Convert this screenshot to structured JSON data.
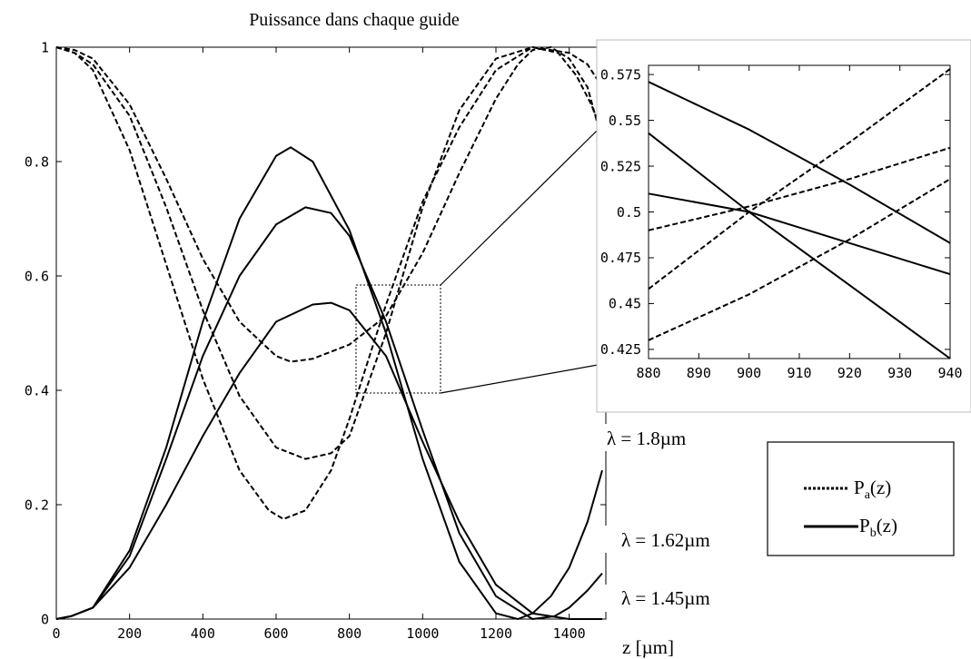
{
  "chart_data": [
    {
      "type": "line",
      "title": "Puissance dans chaque guide",
      "xlabel": "z [µm]",
      "ylabel": "",
      "xlim": [
        0,
        1500
      ],
      "ylim": [
        0,
        1
      ],
      "xticks": [
        "0",
        "200",
        "400",
        "600",
        "800",
        "1000",
        "1200",
        "1400"
      ],
      "yticks": [
        "0",
        "0.2",
        "0.4",
        "0.6",
        "0.8",
        "1"
      ],
      "grid": false,
      "series": [
        {
          "style": "dashed",
          "x": [
            0,
            50,
            100,
            200,
            300,
            400,
            500,
            600,
            640,
            700,
            800,
            900,
            1000,
            1100,
            1200,
            1260,
            1300,
            1350,
            1400,
            1450,
            1480
          ],
          "y": [
            1,
            0.995,
            0.98,
            0.9,
            0.77,
            0.63,
            0.52,
            0.46,
            0.45,
            0.455,
            0.48,
            0.53,
            0.64,
            0.78,
            0.91,
            0.97,
            0.995,
            1.0,
            0.98,
            0.93,
            0.86
          ]
        },
        {
          "style": "dashed",
          "x": [
            0,
            50,
            100,
            200,
            300,
            400,
            500,
            600,
            680,
            750,
            800,
            900,
            1000,
            1100,
            1200,
            1300,
            1370,
            1420,
            1460,
            1490
          ],
          "y": [
            1,
            0.99,
            0.97,
            0.88,
            0.72,
            0.54,
            0.39,
            0.3,
            0.28,
            0.29,
            0.32,
            0.5,
            0.72,
            0.89,
            0.98,
            1.0,
            0.99,
            0.95,
            0.9,
            0.85
          ]
        },
        {
          "style": "dashed",
          "x": [
            0,
            50,
            100,
            200,
            300,
            400,
            500,
            580,
            620,
            680,
            750,
            800,
            900,
            1000,
            1100,
            1200,
            1300,
            1400,
            1450,
            1490
          ],
          "y": [
            1,
            0.99,
            0.96,
            0.82,
            0.62,
            0.42,
            0.26,
            0.19,
            0.175,
            0.19,
            0.26,
            0.35,
            0.55,
            0.73,
            0.86,
            0.96,
            1.0,
            0.99,
            0.97,
            0.93
          ]
        },
        {
          "style": "solid",
          "x": [
            0,
            40,
            100,
            200,
            300,
            400,
            500,
            600,
            640,
            700,
            800,
            900,
            1000,
            1100,
            1200,
            1260,
            1300,
            1350,
            1400,
            1450,
            1490
          ],
          "y": [
            0,
            0.005,
            0.02,
            0.12,
            0.3,
            0.52,
            0.7,
            0.81,
            0.825,
            0.8,
            0.68,
            0.5,
            0.28,
            0.1,
            0.01,
            0,
            0.01,
            0.04,
            0.09,
            0.17,
            0.26
          ]
        },
        {
          "style": "solid",
          "x": [
            0,
            40,
            100,
            200,
            300,
            400,
            500,
            600,
            680,
            750,
            800,
            900,
            1000,
            1100,
            1200,
            1300,
            1360,
            1400,
            1450,
            1490
          ],
          "y": [
            0,
            0.005,
            0.02,
            0.11,
            0.28,
            0.46,
            0.6,
            0.69,
            0.72,
            0.71,
            0.67,
            0.52,
            0.33,
            0.15,
            0.04,
            0,
            0.005,
            0.02,
            0.05,
            0.08
          ]
        },
        {
          "style": "solid",
          "x": [
            0,
            40,
            100,
            200,
            300,
            400,
            500,
            600,
            700,
            750,
            800,
            900,
            1000,
            1100,
            1200,
            1300,
            1400,
            1450,
            1490
          ],
          "y": [
            0,
            0.005,
            0.02,
            0.09,
            0.2,
            0.32,
            0.43,
            0.52,
            0.55,
            0.553,
            0.54,
            0.46,
            0.31,
            0.17,
            0.06,
            0.01,
            0,
            0,
            0
          ]
        }
      ]
    },
    {
      "type": "line",
      "title": "",
      "xlim": [
        880,
        940
      ],
      "ylim": [
        0.42,
        0.58
      ],
      "xticks": [
        "880",
        "890",
        "900",
        "910",
        "920",
        "930",
        "940"
      ],
      "yticks": [
        "0.425",
        "0.45",
        "0.475",
        "0.5",
        "0.525",
        "0.55",
        "0.575"
      ],
      "grid": false,
      "series": [
        {
          "style": "dashed",
          "x": [
            880,
            900,
            920,
            940
          ],
          "y": [
            0.49,
            0.503,
            0.518,
            0.535
          ]
        },
        {
          "style": "dashed",
          "x": [
            880,
            900,
            920,
            940
          ],
          "y": [
            0.458,
            0.5,
            0.538,
            0.578
          ]
        },
        {
          "style": "dashed",
          "x": [
            880,
            900,
            920,
            940
          ],
          "y": [
            0.43,
            0.455,
            0.485,
            0.518
          ]
        },
        {
          "style": "solid",
          "x": [
            880,
            900,
            920,
            940
          ],
          "y": [
            0.571,
            0.545,
            0.515,
            0.483
          ]
        },
        {
          "style": "solid",
          "x": [
            880,
            900,
            920,
            940
          ],
          "y": [
            0.543,
            0.5,
            0.46,
            0.42
          ]
        },
        {
          "style": "solid",
          "x": [
            880,
            900,
            920,
            940
          ],
          "y": [
            0.51,
            0.5,
            0.483,
            0.466
          ]
        }
      ]
    }
  ],
  "annotations": {
    "lambda_1": "λ = 1.8µm",
    "lambda_2": "λ = 1.62µm",
    "lambda_3": "λ = 1.45µm"
  },
  "legend": {
    "pa": "P",
    "pa_sub": "a",
    "pa_suffix": "(z)",
    "pb": "P",
    "pb_sub": "b",
    "pb_suffix": "(z)"
  }
}
